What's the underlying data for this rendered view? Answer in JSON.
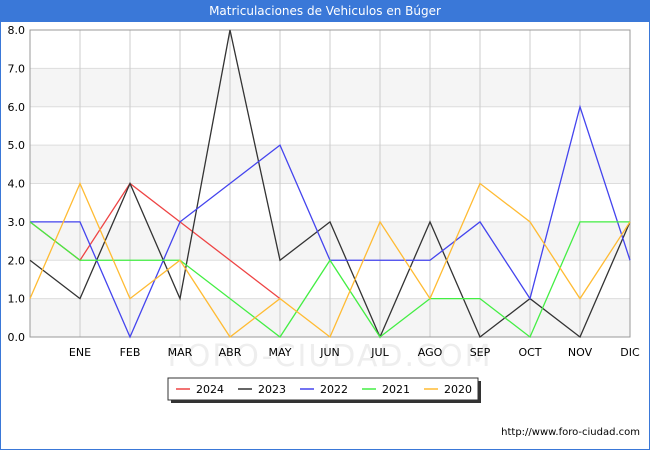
{
  "header": {
    "title": "Matriculaciones de Vehiculos en Búger"
  },
  "footer": {
    "source": "http://www.foro-ciudad.com"
  },
  "watermark": "FORO-CIUDAD.COM",
  "chart_data": {
    "type": "line",
    "title": "Matriculaciones de Vehiculos en Búger",
    "xlabel": "",
    "ylabel": "",
    "ylim": [
      0,
      8
    ],
    "yticks": [
      "0.0",
      "1.0",
      "2.0",
      "3.0",
      "4.0",
      "5.0",
      "6.0",
      "7.0",
      "8.0"
    ],
    "categories": [
      "",
      "ENE",
      "FEB",
      "MAR",
      "ABR",
      "MAY",
      "JUN",
      "JUL",
      "AGO",
      "SEP",
      "OCT",
      "NOV",
      "DIC"
    ],
    "legend_position": "bottom-center",
    "series": [
      {
        "name": "2024",
        "color": "#ee4444",
        "values": [
          3,
          2,
          4,
          3,
          2,
          1,
          null,
          null,
          null,
          null,
          null,
          null,
          null
        ]
      },
      {
        "name": "2023",
        "color": "#333333",
        "values": [
          2,
          1,
          4,
          1,
          8,
          2,
          3,
          0,
          3,
          0,
          1,
          0,
          3
        ]
      },
      {
        "name": "2022",
        "color": "#4444ee",
        "values": [
          3,
          3,
          0,
          3,
          4,
          5,
          2,
          2,
          2,
          3,
          1,
          6,
          2
        ]
      },
      {
        "name": "2021",
        "color": "#44ee44",
        "values": [
          3,
          2,
          2,
          2,
          1,
          0,
          2,
          0,
          1,
          1,
          0,
          3,
          3
        ]
      },
      {
        "name": "2020",
        "color": "#ffbb33",
        "values": [
          1,
          4,
          1,
          2,
          0,
          1,
          0,
          3,
          1,
          4,
          3,
          1,
          3
        ]
      }
    ]
  }
}
